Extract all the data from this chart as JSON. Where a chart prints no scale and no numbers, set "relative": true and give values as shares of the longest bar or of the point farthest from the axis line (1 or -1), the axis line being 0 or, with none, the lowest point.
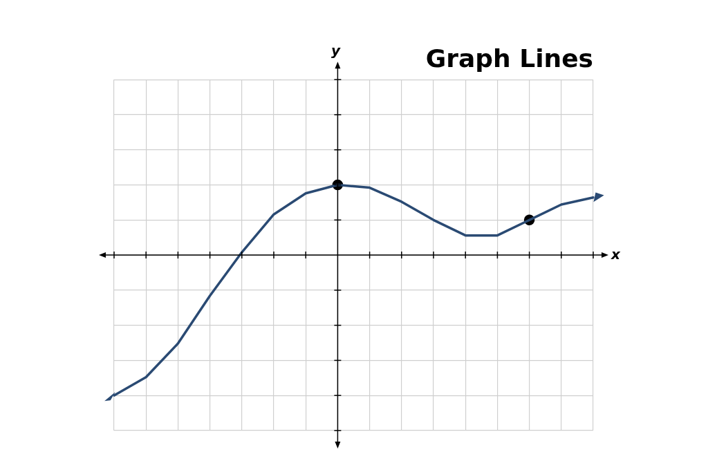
{
  "chart_data": {
    "type": "line",
    "title": "Graph Lines",
    "xlabel": "x",
    "annotations": [
      "y"
    ],
    "relative": true,
    "grid": true,
    "legend": false,
    "categories": [
      null,
      null,
      null,
      null,
      null,
      null,
      null,
      null,
      null,
      null,
      null,
      null,
      null,
      null,
      null,
      null
    ],
    "series": [
      {
        "color": "#2a4a73",
        "marker": "none",
        "values": [
          -1,
          -0.87,
          -0.63,
          -0.29,
          0.02,
          0.29,
          0.44,
          0.5,
          0.48,
          0.38,
          0.25,
          0.14,
          0.14,
          0.25,
          0.36,
          0.41
        ]
      },
      {
        "type": "line",
        "color": "#000000",
        "marker": "circle",
        "values": [
          null,
          null,
          null,
          null,
          null,
          null,
          null,
          0.5,
          null,
          null,
          null,
          null,
          null,
          0.25,
          null,
          null
        ]
      }
    ]
  }
}
